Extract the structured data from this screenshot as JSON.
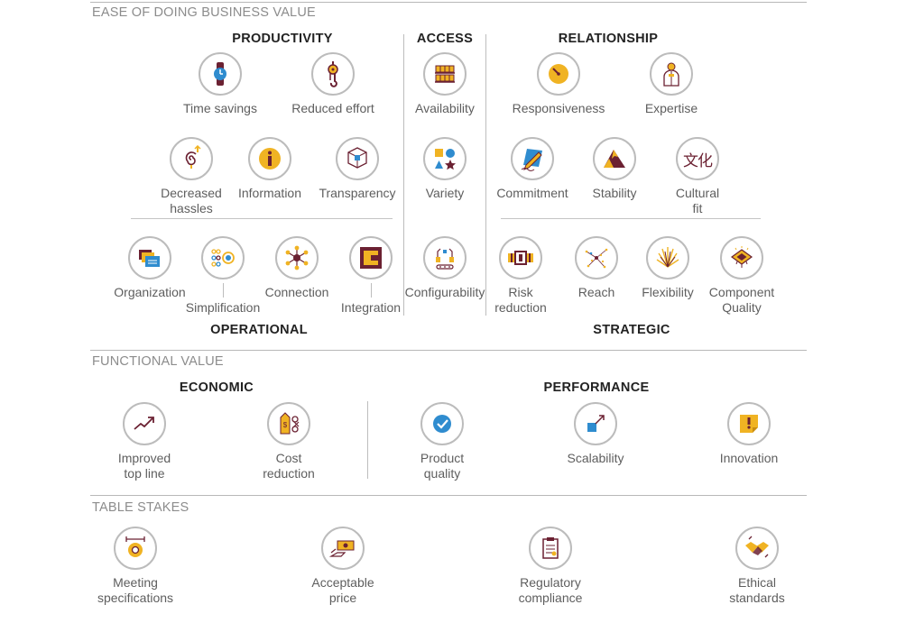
{
  "sections": {
    "ease": "EASE OF DOING BUSINESS VALUE",
    "functional": "FUNCTIONAL VALUE",
    "table_stakes": "TABLE STAKES"
  },
  "groups": {
    "productivity": "PRODUCTIVITY",
    "access": "ACCESS",
    "relationship": "RELATIONSHIP",
    "operational": "OPERATIONAL",
    "strategic": "STRATEGIC",
    "economic": "ECONOMIC",
    "performance": "PERFORMANCE"
  },
  "elements": {
    "time_savings": "Time savings",
    "reduced_effort": "Reduced effort",
    "availability": "Availability",
    "responsiveness": "Responsiveness",
    "expertise": "Expertise",
    "decreased_hassles": "Decreased\nhassles",
    "information": "Information",
    "transparency": "Transparency",
    "variety": "Variety",
    "commitment": "Commitment",
    "stability": "Stability",
    "cultural_fit": "Cultural\nfit",
    "organization": "Organization",
    "simplification": "Simplification",
    "connection": "Connection",
    "integration": "Integration",
    "configurability": "Configurability",
    "risk_reduction": "Risk\nreduction",
    "reach": "Reach",
    "flexibility": "Flexibility",
    "component_quality": "Component\nQuality",
    "improved_top_line": "Improved\ntop line",
    "cost_reduction": "Cost\nreduction",
    "product_quality": "Product\nquality",
    "scalability": "Scalability",
    "innovation": "Innovation",
    "meeting_specifications": "Meeting\nspecifications",
    "acceptable_price": "Acceptable\nprice",
    "regulatory_compliance": "Regulatory\ncompliance",
    "ethical_standards": "Ethical\nstandards"
  },
  "icon_glyphs": {
    "cultural_fit": "文化"
  },
  "colors": {
    "accent_gold": "#f0b323",
    "accent_blue": "#2f8ccf",
    "accent_maroon": "#6b2132",
    "ring": "#bcbcbc"
  }
}
